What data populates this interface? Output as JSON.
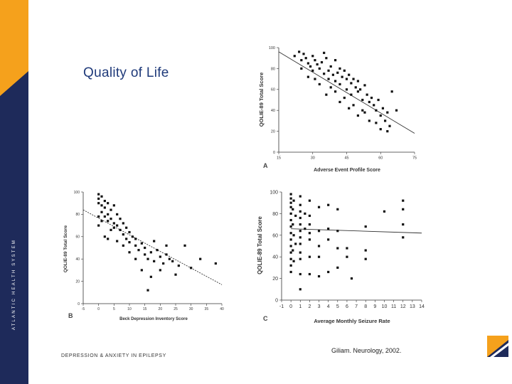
{
  "slide": {
    "title": "Quality of Life",
    "footer_left": "DEPRESSION & ANXIETY IN EPILEPSY",
    "footer_right": "Giliam. Neurology, 2002.",
    "sidebar_text": "ATLANTIC HEALTH SYSTEM",
    "colors": {
      "sidebar": "#1e2a5a",
      "accent": "#f5a11c",
      "title": "#1f3a7a",
      "point": "#111111"
    }
  },
  "chart_data": [
    {
      "type": "scatter",
      "panel_label": "A",
      "xlabel": "Adverse Event Profile Score",
      "ylabel": "QOLIE-89 Total Score",
      "xlim": [
        15,
        75
      ],
      "ylim": [
        0,
        100
      ],
      "xticks": [
        15,
        30,
        45,
        60,
        75
      ],
      "yticks": [
        0,
        20,
        40,
        60,
        80,
        100
      ],
      "fit_line": [
        [
          15,
          96
        ],
        [
          75,
          18
        ]
      ],
      "points": [
        [
          22,
          92
        ],
        [
          24,
          96
        ],
        [
          25,
          88
        ],
        [
          26,
          94
        ],
        [
          27,
          90
        ],
        [
          28,
          85
        ],
        [
          29,
          82
        ],
        [
          30,
          92
        ],
        [
          30,
          78
        ],
        [
          31,
          88
        ],
        [
          32,
          84
        ],
        [
          33,
          80
        ],
        [
          34,
          86
        ],
        [
          35,
          95
        ],
        [
          35,
          75
        ],
        [
          36,
          90
        ],
        [
          37,
          78
        ],
        [
          37,
          70
        ],
        [
          38,
          82
        ],
        [
          39,
          74
        ],
        [
          40,
          88
        ],
        [
          40,
          68
        ],
        [
          41,
          76
        ],
        [
          42,
          80
        ],
        [
          42,
          65
        ],
        [
          43,
          72
        ],
        [
          44,
          78
        ],
        [
          45,
          70
        ],
        [
          45,
          60
        ],
        [
          46,
          74
        ],
        [
          47,
          66
        ],
        [
          47,
          55
        ],
        [
          48,
          70
        ],
        [
          49,
          62
        ],
        [
          50,
          68
        ],
        [
          50,
          58
        ],
        [
          51,
          60
        ],
        [
          52,
          50
        ],
        [
          53,
          64
        ],
        [
          54,
          55
        ],
        [
          55,
          48
        ],
        [
          56,
          52
        ],
        [
          57,
          45
        ],
        [
          58,
          40
        ],
        [
          59,
          50
        ],
        [
          60,
          35
        ],
        [
          61,
          42
        ],
        [
          62,
          30
        ],
        [
          63,
          38
        ],
        [
          64,
          25
        ],
        [
          65,
          58
        ],
        [
          52,
          40
        ],
        [
          48,
          45
        ],
        [
          44,
          52
        ],
        [
          40,
          58
        ],
        [
          33,
          65
        ],
        [
          28,
          72
        ],
        [
          36,
          55
        ],
        [
          42,
          48
        ],
        [
          55,
          30
        ],
        [
          58,
          28
        ],
        [
          60,
          22
        ],
        [
          25,
          80
        ],
        [
          31,
          70
        ],
        [
          46,
          42
        ],
        [
          53,
          38
        ],
        [
          63,
          20
        ],
        [
          67,
          40
        ],
        [
          38,
          62
        ],
        [
          50,
          35
        ]
      ]
    },
    {
      "type": "scatter",
      "panel_label": "B",
      "xlabel": "Beck Depression Inventory Score",
      "ylabel": "QOLIE-89 Total Score",
      "xlim": [
        -5,
        40
      ],
      "ylim": [
        0,
        100
      ],
      "xticks": [
        -5,
        0,
        5,
        10,
        15,
        20,
        25,
        30,
        35,
        40
      ],
      "yticks": [
        0,
        20,
        40,
        60,
        80,
        100
      ],
      "fit_line": [
        [
          -5,
          84
        ],
        [
          40,
          17
        ]
      ],
      "points": [
        [
          0,
          98
        ],
        [
          0,
          94
        ],
        [
          0,
          90
        ],
        [
          1,
          96
        ],
        [
          1,
          88
        ],
        [
          1,
          82
        ],
        [
          2,
          92
        ],
        [
          2,
          86
        ],
        [
          2,
          78
        ],
        [
          3,
          90
        ],
        [
          3,
          80
        ],
        [
          3,
          74
        ],
        [
          4,
          84
        ],
        [
          4,
          76
        ],
        [
          5,
          88
        ],
        [
          5,
          72
        ],
        [
          5,
          68
        ],
        [
          6,
          80
        ],
        [
          6,
          70
        ],
        [
          7,
          66
        ],
        [
          7,
          76
        ],
        [
          8,
          62
        ],
        [
          8,
          72
        ],
        [
          9,
          58
        ],
        [
          9,
          68
        ],
        [
          10,
          64
        ],
        [
          10,
          55
        ],
        [
          11,
          60
        ],
        [
          12,
          52
        ],
        [
          12,
          58
        ],
        [
          13,
          48
        ],
        [
          14,
          54
        ],
        [
          15,
          50
        ],
        [
          15,
          44
        ],
        [
          16,
          40
        ],
        [
          17,
          46
        ],
        [
          17,
          24
        ],
        [
          18,
          38
        ],
        [
          19,
          48
        ],
        [
          20,
          42
        ],
        [
          20,
          30
        ],
        [
          21,
          36
        ],
        [
          22,
          44
        ],
        [
          23,
          40
        ],
        [
          24,
          38
        ],
        [
          25,
          26
        ],
        [
          26,
          34
        ],
        [
          28,
          52
        ],
        [
          30,
          32
        ],
        [
          33,
          40
        ],
        [
          38,
          36
        ],
        [
          0,
          70
        ],
        [
          2,
          60
        ],
        [
          4,
          66
        ],
        [
          6,
          56
        ],
        [
          8,
          52
        ],
        [
          10,
          46
        ],
        [
          14,
          30
        ],
        [
          16,
          12
        ],
        [
          18,
          56
        ],
        [
          22,
          52
        ],
        [
          0,
          78
        ],
        [
          1,
          74
        ],
        [
          3,
          58
        ],
        [
          12,
          40
        ]
      ]
    },
    {
      "type": "scatter",
      "panel_label": "C",
      "xlabel": "Average Monthly Seizure Rate",
      "ylabel": "QOLIE-89 Total Score",
      "xlim": [
        -1,
        14
      ],
      "ylim": [
        0,
        100
      ],
      "xticks": [
        -1,
        0,
        1,
        2,
        3,
        4,
        5,
        6,
        7,
        8,
        9,
        10,
        11,
        12,
        13,
        14
      ],
      "yticks": [
        0,
        20,
        40,
        60,
        80,
        100
      ],
      "fit_line": [
        [
          0,
          66
        ],
        [
          14,
          62
        ]
      ],
      "points": [
        [
          0,
          98
        ],
        [
          0,
          94
        ],
        [
          0,
          90
        ],
        [
          0,
          86
        ],
        [
          0,
          80
        ],
        [
          0,
          74
        ],
        [
          0,
          68
        ],
        [
          0,
          62
        ],
        [
          0,
          56
        ],
        [
          0,
          50
        ],
        [
          0,
          44
        ],
        [
          0,
          38
        ],
        [
          0,
          32
        ],
        [
          0,
          26
        ],
        [
          0.2,
          84
        ],
        [
          0.2,
          70
        ],
        [
          0.2,
          46
        ],
        [
          0.3,
          92
        ],
        [
          0.3,
          60
        ],
        [
          0.3,
          36
        ],
        [
          0.5,
          78
        ],
        [
          0.5,
          52
        ],
        [
          1,
          96
        ],
        [
          1,
          88
        ],
        [
          1,
          82
        ],
        [
          1,
          76
        ],
        [
          1,
          70
        ],
        [
          1,
          64
        ],
        [
          1,
          58
        ],
        [
          1,
          52
        ],
        [
          1,
          44
        ],
        [
          1,
          38
        ],
        [
          1,
          24
        ],
        [
          1,
          10
        ],
        [
          1.5,
          80
        ],
        [
          1.5,
          66
        ],
        [
          2,
          92
        ],
        [
          2,
          78
        ],
        [
          2,
          70
        ],
        [
          2,
          62
        ],
        [
          2,
          56
        ],
        [
          2,
          40
        ],
        [
          2,
          24
        ],
        [
          3,
          86
        ],
        [
          3,
          64
        ],
        [
          3,
          50
        ],
        [
          3,
          40
        ],
        [
          3,
          22
        ],
        [
          4,
          88
        ],
        [
          4,
          66
        ],
        [
          4,
          56
        ],
        [
          4,
          26
        ],
        [
          5,
          84
        ],
        [
          5,
          64
        ],
        [
          5,
          48
        ],
        [
          5,
          30
        ],
        [
          6,
          48
        ],
        [
          6,
          40
        ],
        [
          6.5,
          20
        ],
        [
          8,
          68
        ],
        [
          8,
          46
        ],
        [
          8,
          38
        ],
        [
          10,
          82
        ],
        [
          12,
          92
        ],
        [
          12,
          84
        ],
        [
          12,
          70
        ],
        [
          12,
          58
        ]
      ]
    }
  ]
}
